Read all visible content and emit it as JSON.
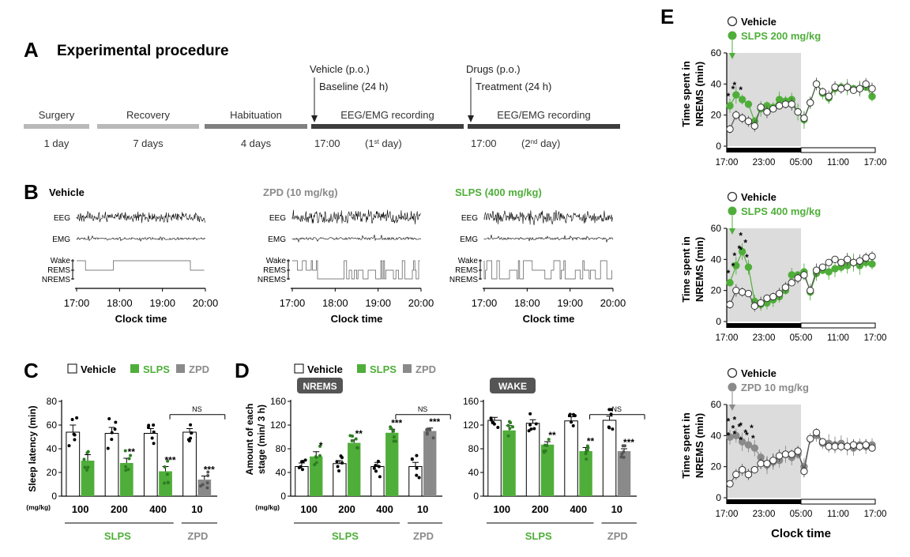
{
  "panel_a": {
    "letter": "A",
    "title": "Experimental procedure",
    "colors": {
      "light": "#b9b9b9",
      "mid": "#808080",
      "dark": "#3d3d3d"
    },
    "stages": [
      {
        "label": "Surgery",
        "duration": "1 day"
      },
      {
        "label": "Recovery",
        "duration": "7 days"
      },
      {
        "label": "Habituation",
        "duration": "4 days"
      },
      {
        "label": "EEG/EMG recording",
        "top1": "Vehicle (p.o.)",
        "top2": "Baseline (24 h)",
        "time": "17:00",
        "day_pre": "(1",
        "day_sup": "st",
        "day_post": " day)"
      },
      {
        "label": "EEG/EMG recording",
        "top1": "Drugs (p.o.)",
        "top2": "Treatment (24 h)",
        "time": "17:00",
        "day_pre": "(2",
        "day_sup": "nd",
        "day_post": " day)"
      }
    ]
  },
  "panel_b": {
    "letter": "B",
    "xticks": [
      "17:00",
      "18:00",
      "19:00",
      "20:00"
    ],
    "xlabel": "Clock time",
    "trace_labels": {
      "eeg": "EEG",
      "emg": "EMG",
      "wake": "Wake",
      "rems": "REMS",
      "nrems": "NREMS"
    },
    "recordings": [
      {
        "title": "Vehicle",
        "color": "#000000"
      },
      {
        "title": "ZPD (10 mg/kg)",
        "color": "#8a8a8a"
      },
      {
        "title": "SLPS (400 mg/kg)",
        "color": "#4fae3a"
      }
    ]
  },
  "colors": {
    "vehicle": "#ffffff",
    "slps": "#4fae3a",
    "zpd": "#8a8a8a",
    "box": "#555555"
  },
  "legend": {
    "vehicle": "Vehicle",
    "slps": "SLPS",
    "zpd": "ZPD"
  },
  "chart_data": [
    {
      "id": "C",
      "letter": "C",
      "type": "bar",
      "ylabel": "Sleep latency (min)",
      "ylim": [
        0,
        80
      ],
      "yticks": [
        0,
        20,
        40,
        60,
        80
      ],
      "unit_label": "(mg/kg)",
      "doses": [
        "100",
        "200",
        "400",
        "10"
      ],
      "groups": [
        {
          "dose": "100",
          "vehicle": 54,
          "vehicle_err": 6,
          "drug": "slps",
          "drug_value": 30,
          "drug_err": 5,
          "sig": ""
        },
        {
          "dose": "200",
          "vehicle": 53,
          "vehicle_err": 5,
          "drug": "slps",
          "drug_value": 28,
          "drug_err": 4,
          "sig": "**"
        },
        {
          "dose": "400",
          "vehicle": 53,
          "vehicle_err": 4,
          "drug": "slps",
          "drug_value": 21,
          "drug_err": 4,
          "sig": "***"
        },
        {
          "dose": "10",
          "vehicle": 54,
          "vehicle_err": 3,
          "drug": "zpd",
          "drug_value": 14,
          "drug_err": 3,
          "sig": "***"
        }
      ],
      "ns_label": "NS",
      "group_labels": {
        "slps": "SLPS",
        "zpd": "ZPD"
      }
    },
    {
      "id": "D1",
      "letter": "D",
      "type": "bar",
      "badge": "NREMS",
      "ylabel": "Amount of each stage (min/ 3 h)",
      "ylabel_lines": [
        "Amount of each",
        "stage (min/ 3 h)"
      ],
      "ylim": [
        0,
        160
      ],
      "yticks": [
        0,
        40,
        80,
        120,
        160
      ],
      "unit_label": "(mg/kg)",
      "doses": [
        "100",
        "200",
        "400",
        "10"
      ],
      "groups": [
        {
          "dose": "100",
          "vehicle": 50,
          "vehicle_err": 6,
          "drug": "slps",
          "drug_value": 67,
          "drug_err": 8,
          "sig": "*"
        },
        {
          "dose": "200",
          "vehicle": 55,
          "vehicle_err": 5,
          "drug": "slps",
          "drug_value": 90,
          "drug_err": 5,
          "sig": "**"
        },
        {
          "dose": "400",
          "vehicle": 50,
          "vehicle_err": 7,
          "drug": "slps",
          "drug_value": 107,
          "drug_err": 6,
          "sig": "***"
        },
        {
          "dose": "10",
          "vehicle": 50,
          "vehicle_err": 7,
          "drug": "zpd",
          "drug_value": 110,
          "drug_err": 5,
          "sig": "***"
        }
      ],
      "ns_label": "NS",
      "group_labels": {
        "slps": "SLPS",
        "zpd": "ZPD"
      }
    },
    {
      "id": "D2",
      "type": "bar",
      "badge": "WAKE",
      "ylim": [
        0,
        160
      ],
      "yticks": [
        0,
        40,
        80,
        120,
        160
      ],
      "doses": [
        "100",
        "200",
        "400",
        "10"
      ],
      "groups": [
        {
          "dose": "100",
          "vehicle": 128,
          "vehicle_err": 5,
          "drug": "slps",
          "drug_value": 111,
          "drug_err": 8,
          "sig": ""
        },
        {
          "dose": "200",
          "vehicle": 123,
          "vehicle_err": 6,
          "drug": "slps",
          "drug_value": 87,
          "drug_err": 5,
          "sig": "**"
        },
        {
          "dose": "400",
          "vehicle": 127,
          "vehicle_err": 7,
          "drug": "slps",
          "drug_value": 76,
          "drug_err": 6,
          "sig": "**"
        },
        {
          "dose": "10",
          "vehicle": 128,
          "vehicle_err": 7,
          "drug": "zpd",
          "drug_value": 76,
          "drug_err": 4,
          "sig": "***"
        }
      ],
      "ns_label": "NS",
      "group_labels": {
        "slps": "SLPS",
        "zpd": "ZPD"
      }
    },
    {
      "id": "E1",
      "letter": "E",
      "type": "line",
      "ylabel": "Time spent in NREMS (min)",
      "ylabel_lines": [
        "Time spent in",
        "NREMS (min)"
      ],
      "ylim": [
        0,
        60
      ],
      "yticks": [
        0,
        20,
        40,
        60
      ],
      "xticks": [
        "17:00",
        "23:00",
        "05:00",
        "11:00",
        "17:00"
      ],
      "legend": [
        "Vehicle",
        "SLPS 200 mg/kg"
      ],
      "drug": "slps",
      "series": [
        {
          "name": "Vehicle",
          "values": [
            11,
            20,
            18,
            16,
            13,
            25,
            22,
            24,
            26,
            27,
            27,
            22,
            18,
            28,
            40,
            35,
            32,
            38,
            37,
            38,
            36,
            37,
            40,
            37
          ],
          "err": 3
        },
        {
          "name": "SLPS 200 mg/kg",
          "values": [
            26,
            33,
            30,
            27,
            16,
            24,
            26,
            25,
            30,
            29,
            30,
            22,
            17,
            28,
            40,
            34,
            31,
            37,
            38,
            38,
            37,
            37,
            38,
            32
          ],
          "err": 4
        }
      ],
      "sig": [
        "**",
        "*",
        "*"
      ]
    },
    {
      "id": "E2",
      "type": "line",
      "ylabel": "Time spent in NREMS (min)",
      "ylabel_lines": [
        "Time spent in",
        "NREMS (min)"
      ],
      "ylim": [
        0,
        60
      ],
      "yticks": [
        0,
        20,
        40,
        60
      ],
      "xticks": [
        "17:00",
        "23:00",
        "05:00",
        "11:00",
        "17:00"
      ],
      "legend": [
        "Vehicle",
        "SLPS 400 mg/kg"
      ],
      "drug": "slps",
      "series": [
        {
          "name": "Vehicle",
          "values": [
            11,
            20,
            19,
            18,
            10,
            12,
            15,
            16,
            18,
            22,
            25,
            28,
            30,
            20,
            33,
            35,
            38,
            40,
            38,
            40,
            38,
            39,
            41,
            42
          ],
          "err": 3
        },
        {
          "name": "SLPS 400 mg/kg",
          "values": [
            25,
            36,
            45,
            35,
            13,
            11,
            12,
            14,
            16,
            20,
            30,
            30,
            32,
            19,
            31,
            33,
            32,
            34,
            35,
            36,
            38,
            36,
            38,
            37
          ],
          "err": 4
        }
      ],
      "sig": [
        "**",
        "**",
        "***",
        "*"
      ]
    },
    {
      "id": "E3",
      "type": "line",
      "ylabel": "Time spent in NREMS (min)",
      "ylabel_lines": [
        "Time spent in",
        "NREMS (min)"
      ],
      "ylim": [
        0,
        60
      ],
      "yticks": [
        0,
        20,
        40,
        60
      ],
      "xticks": [
        "17:00",
        "23:00",
        "05:00",
        "11:00",
        "17:00"
      ],
      "xlabel": "Clock time",
      "legend": [
        "Vehicle",
        "ZPD 10 mg/kg"
      ],
      "drug": "zpd",
      "series": [
        {
          "name": "Vehicle",
          "values": [
            9,
            15,
            18,
            15,
            18,
            22,
            22,
            24,
            27,
            28,
            28,
            30,
            17,
            38,
            42,
            36,
            33,
            33,
            33,
            33,
            34,
            33,
            34,
            32
          ],
          "err": 3
        },
        {
          "name": "ZPD 10 mg/kg",
          "values": [
            39,
            40,
            36,
            34,
            32,
            26,
            21,
            23,
            24,
            28,
            26,
            28,
            20,
            38,
            40,
            35,
            35,
            34,
            35,
            33,
            32,
            34,
            33,
            34
          ],
          "err": 4
        }
      ],
      "sig": [
        "***",
        "***",
        "***",
        "**",
        "*"
      ]
    }
  ]
}
